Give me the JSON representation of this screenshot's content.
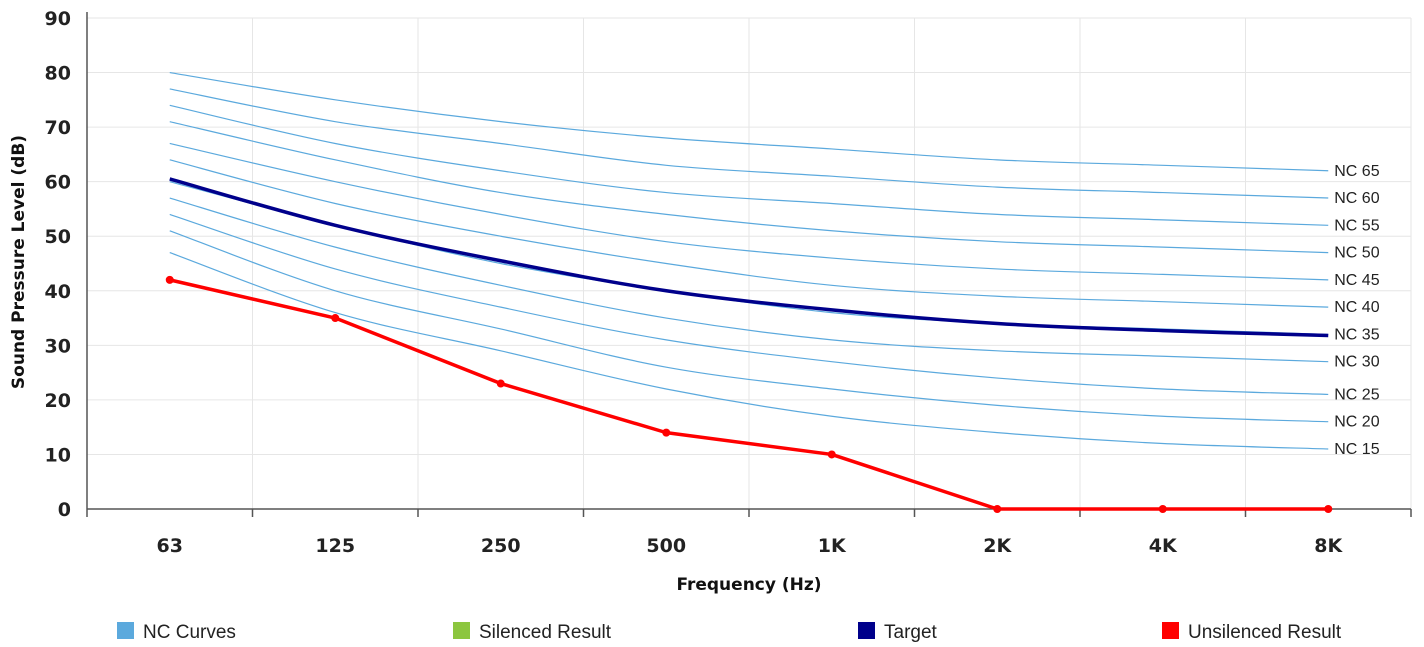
{
  "chart_data": {
    "type": "line",
    "xlabel": "Frequency (Hz)",
    "ylabel": "Sound Pressure Level (dB)",
    "categories": [
      "63",
      "125",
      "250",
      "500",
      "1K",
      "2K",
      "4K",
      "8K"
    ],
    "ylim": [
      0,
      90
    ],
    "yticks": [
      0,
      10,
      20,
      30,
      40,
      50,
      60,
      70,
      80,
      90
    ],
    "grid": true,
    "legend_position": "bottom",
    "colors": {
      "nc_curves": "#5ba9dd",
      "silenced": "#8cc63f",
      "target": "#00008b",
      "unsilenced": "#ff0000",
      "grid": "#e6e6e6",
      "axis": "#555555"
    },
    "nc_curves": [
      {
        "label": "NC 15",
        "values": [
          47,
          36,
          29,
          22,
          17,
          14,
          12,
          11
        ]
      },
      {
        "label": "NC 20",
        "values": [
          51,
          40,
          33,
          26,
          22,
          19,
          17,
          16
        ]
      },
      {
        "label": "NC 25",
        "values": [
          54,
          44,
          37,
          31,
          27,
          24,
          22,
          21
        ]
      },
      {
        "label": "NC 30",
        "values": [
          57,
          48,
          41,
          35,
          31,
          29,
          28,
          27
        ]
      },
      {
        "label": "NC 35",
        "values": [
          60,
          52,
          45,
          40,
          36,
          34,
          33,
          32
        ]
      },
      {
        "label": "NC 40",
        "values": [
          64,
          56,
          50,
          45,
          41,
          39,
          38,
          37
        ]
      },
      {
        "label": "NC 45",
        "values": [
          67,
          60,
          54,
          49,
          46,
          44,
          43,
          42
        ]
      },
      {
        "label": "NC 50",
        "values": [
          71,
          64,
          58,
          54,
          51,
          49,
          48,
          47
        ]
      },
      {
        "label": "NC 55",
        "values": [
          74,
          67,
          62,
          58,
          56,
          54,
          53,
          52
        ]
      },
      {
        "label": "NC 60",
        "values": [
          77,
          71,
          67,
          63,
          61,
          59,
          58,
          57
        ]
      },
      {
        "label": "NC 65",
        "values": [
          80,
          75,
          71,
          68,
          66,
          64,
          63,
          62
        ]
      }
    ],
    "series": [
      {
        "name": "Target",
        "values": [
          60.5,
          52,
          45.5,
          40,
          36.5,
          34,
          32.7,
          31.8
        ]
      },
      {
        "name": "Unsilenced Result",
        "values": [
          42,
          35,
          23,
          14,
          10,
          0,
          0,
          0
        ]
      }
    ],
    "legend": [
      {
        "label": "NC Curves",
        "color": "#5ba9dd"
      },
      {
        "label": "Silenced Result",
        "color": "#8cc63f"
      },
      {
        "label": "Target",
        "color": "#00008b"
      },
      {
        "label": "Unsilenced Result",
        "color": "#ff0000"
      }
    ]
  }
}
